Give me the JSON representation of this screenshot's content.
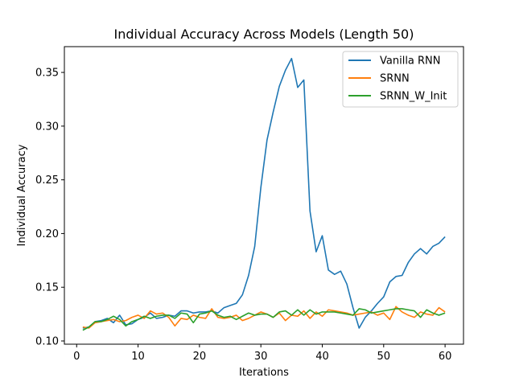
{
  "chart_data": {
    "type": "line",
    "title": "Individual Accuracy Across Models (Length 50)",
    "xlabel": "Iterations",
    "ylabel": "Individual Accuracy",
    "xlim": [
      -2,
      63
    ],
    "ylim": [
      0.097,
      0.374
    ],
    "xticks": [
      0,
      10,
      20,
      30,
      40,
      50,
      60
    ],
    "yticks": [
      0.1,
      0.15,
      0.2,
      0.25,
      0.3,
      0.35
    ],
    "ytick_labels": [
      "0.10",
      "0.15",
      "0.20",
      "0.25",
      "0.30",
      "0.35"
    ],
    "legend_position": "top-right",
    "grid": false,
    "x": [
      1,
      2,
      3,
      4,
      5,
      6,
      7,
      8,
      9,
      10,
      11,
      12,
      13,
      14,
      15,
      16,
      17,
      18,
      19,
      20,
      21,
      22,
      23,
      24,
      25,
      26,
      27,
      28,
      29,
      30,
      31,
      32,
      33,
      34,
      35,
      36,
      37,
      38,
      39,
      40,
      41,
      42,
      43,
      44,
      45,
      46,
      47,
      48,
      49,
      50,
      51,
      52,
      53,
      54,
      55,
      56,
      57,
      58,
      59,
      60
    ],
    "series": [
      {
        "name": "Vanilla RNN",
        "color": "#1f77b4",
        "values": [
          0.112,
          0.113,
          0.118,
          0.119,
          0.121,
          0.117,
          0.124,
          0.115,
          0.116,
          0.12,
          0.122,
          0.126,
          0.121,
          0.122,
          0.124,
          0.123,
          0.128,
          0.128,
          0.126,
          0.127,
          0.127,
          0.128,
          0.126,
          0.131,
          0.133,
          0.135,
          0.143,
          0.161,
          0.188,
          0.243,
          0.287,
          0.313,
          0.337,
          0.352,
          0.363,
          0.336,
          0.343,
          0.221,
          0.183,
          0.198,
          0.166,
          0.162,
          0.165,
          0.153,
          0.131,
          0.112,
          0.122,
          0.128,
          0.135,
          0.141,
          0.155,
          0.16,
          0.161,
          0.173,
          0.181,
          0.186,
          0.181,
          0.188,
          0.191,
          0.197
        ]
      },
      {
        "name": "SRNN",
        "color": "#ff7f0e",
        "values": [
          0.113,
          0.112,
          0.117,
          0.118,
          0.119,
          0.12,
          0.118,
          0.119,
          0.122,
          0.124,
          0.121,
          0.128,
          0.125,
          0.126,
          0.122,
          0.114,
          0.121,
          0.12,
          0.124,
          0.122,
          0.121,
          0.13,
          0.122,
          0.121,
          0.122,
          0.124,
          0.119,
          0.121,
          0.124,
          0.127,
          0.125,
          0.122,
          0.126,
          0.119,
          0.124,
          0.123,
          0.128,
          0.121,
          0.127,
          0.123,
          0.129,
          0.128,
          0.127,
          0.126,
          0.124,
          0.125,
          0.126,
          0.127,
          0.124,
          0.126,
          0.12,
          0.132,
          0.127,
          0.124,
          0.122,
          0.127,
          0.125,
          0.124,
          0.131,
          0.127
        ]
      },
      {
        "name": "SRNN_W_Init",
        "color": "#2ca02c",
        "values": [
          0.11,
          0.113,
          0.118,
          0.118,
          0.12,
          0.123,
          0.12,
          0.114,
          0.118,
          0.12,
          0.123,
          0.121,
          0.123,
          0.124,
          0.124,
          0.121,
          0.126,
          0.125,
          0.117,
          0.125,
          0.126,
          0.128,
          0.124,
          0.122,
          0.123,
          0.12,
          0.123,
          0.126,
          0.124,
          0.125,
          0.125,
          0.122,
          0.127,
          0.128,
          0.124,
          0.129,
          0.124,
          0.129,
          0.125,
          0.127,
          0.127,
          0.127,
          0.126,
          0.125,
          0.124,
          0.13,
          0.129,
          0.126,
          0.127,
          0.128,
          0.129,
          0.13,
          0.13,
          0.129,
          0.128,
          0.122,
          0.129,
          0.126,
          0.124,
          0.126
        ]
      }
    ]
  }
}
